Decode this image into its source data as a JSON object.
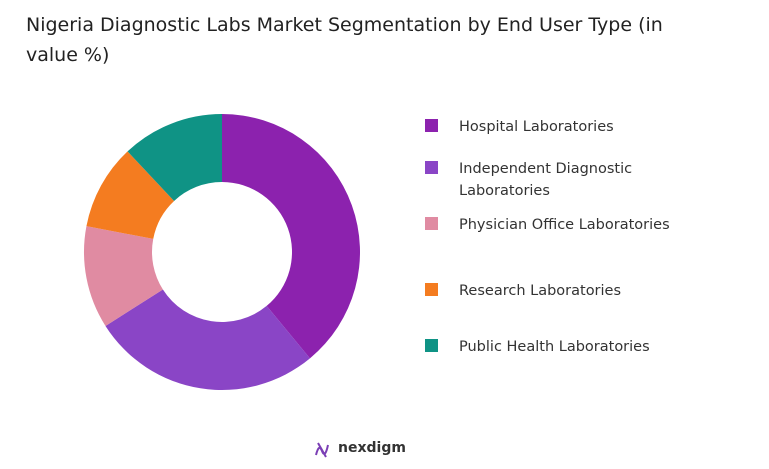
{
  "chart_data": {
    "type": "donut",
    "title": "Nigeria Diagnostic Labs Market Segmentation by End User Type (in value %)",
    "categories": [
      "Hospital Laboratories",
      "Independent Diagnostic Laboratories",
      "Physician Office Laboratories",
      "Research Laboratories",
      "Public Health Laboratories"
    ],
    "values": [
      39,
      27,
      12,
      10,
      12
    ],
    "colors": [
      "#8c22ae",
      "#8a45c6",
      "#e08ba2",
      "#f47c20",
      "#0f9385"
    ],
    "legend": "right",
    "brand": "nexdigm"
  }
}
